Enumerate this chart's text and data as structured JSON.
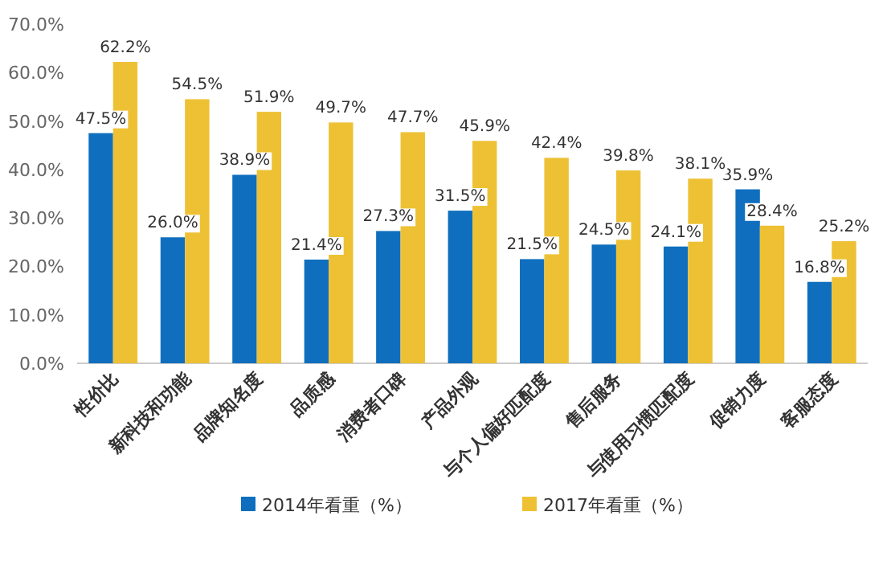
{
  "chart_data": {
    "type": "bar",
    "categories": [
      "性价比",
      "新科技和功能",
      "品牌知名度",
      "品质感",
      "消费者口碑",
      "产品外观",
      "与个人偏好匹配度",
      "售后服务",
      "与使用习惯匹配度",
      "促销力度",
      "客服态度"
    ],
    "series": [
      {
        "name": "2014年看重（%）",
        "color": "#0f6fbe",
        "values": [
          47.5,
          26.0,
          38.9,
          21.4,
          27.3,
          31.5,
          21.5,
          24.5,
          24.1,
          35.9,
          16.8
        ],
        "value_labels": [
          "47.5%",
          "26.0%",
          "38.9%",
          "21.4%",
          "27.3%",
          "31.5%",
          "21.5%",
          "24.5%",
          "24.1%",
          "35.9%",
          "16.8%"
        ]
      },
      {
        "name": "2017年看重（%）",
        "color": "#eec135",
        "values": [
          62.2,
          54.5,
          51.9,
          49.7,
          47.7,
          45.9,
          42.4,
          39.8,
          38.1,
          28.4,
          25.2
        ],
        "value_labels": [
          "62.2%",
          "54.5%",
          "51.9%",
          "49.7%",
          "47.7%",
          "45.9%",
          "42.4%",
          "39.8%",
          "38.1%",
          "28.4%",
          "25.2%"
        ]
      }
    ],
    "ylim": [
      0,
      70
    ],
    "yticks": [
      {
        "value": 0,
        "label": "0.0%"
      },
      {
        "value": 10,
        "label": "10.0%"
      },
      {
        "value": 20,
        "label": "20.0%"
      },
      {
        "value": 30,
        "label": "30.0%"
      },
      {
        "value": 40,
        "label": "40.0%"
      },
      {
        "value": 50,
        "label": "50.0%"
      },
      {
        "value": 60,
        "label": "60.0%"
      },
      {
        "value": 70,
        "label": "70.0%"
      }
    ],
    "legend": "bottom"
  }
}
